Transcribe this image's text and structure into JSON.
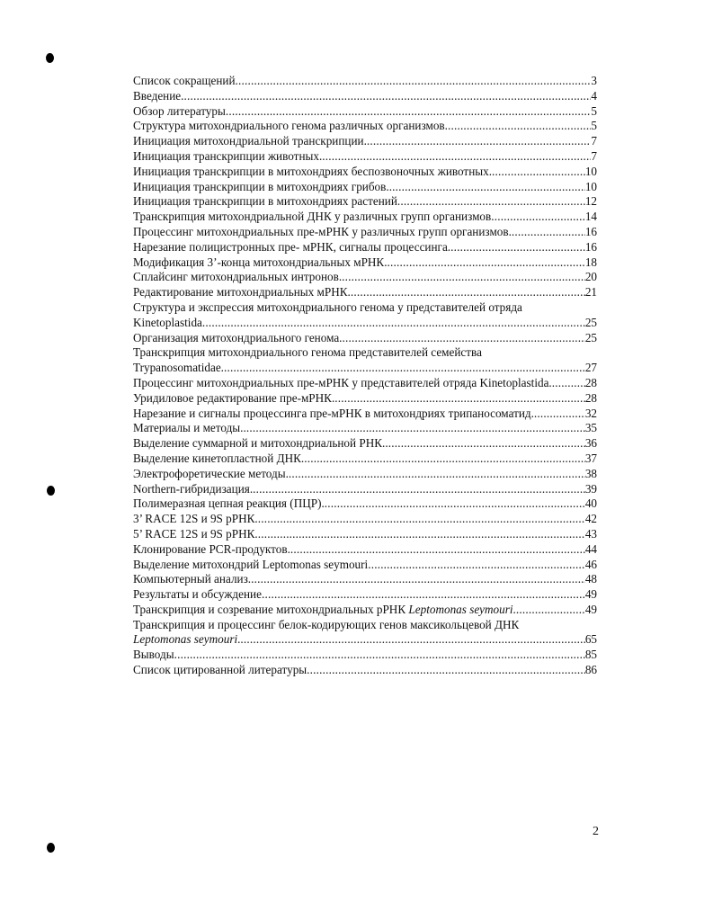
{
  "toc": [
    {
      "title": "Список сокращений",
      "page": "3"
    },
    {
      "title": "Введение. ",
      "page": "4"
    },
    {
      "title": "Обзор литературы",
      "page": "5"
    },
    {
      "title": "Структура митохондриального генома различных организмов. ",
      "page": "5"
    },
    {
      "title": "Инициация митохондриальной транскрипции.",
      "page": "7"
    },
    {
      "title": "Инициация транскрипции животных.",
      "page": "7"
    },
    {
      "title": "Инициация транскрипции в митохондриях беспозвоночных животных. ",
      "page": "10"
    },
    {
      "title": "Инициация транскрипции в митохондриях грибов.",
      "page": "10"
    },
    {
      "title": "Инициация транскрипции в митохондриях растений ",
      "page": "12"
    },
    {
      "title": "Транскрипция митохондриальной ДНК у различных групп организмов ",
      "page": "14"
    },
    {
      "title": "Процессинг митохондриальных пре-мРНК у различных групп организмов.",
      "page": "16"
    },
    {
      "title": "Нарезание полицистронных пре- мРНК, сигналы процессинга. ",
      "page": "16"
    },
    {
      "title": "Модификация 3’-конца митохондриальных мРНК.",
      "page": "18"
    },
    {
      "title": "Сплайсинг митохондриальных интронов.",
      "page": "20"
    },
    {
      "title": "Редактирование митохондриальных мРНК.",
      "page": "21"
    },
    {
      "title": "Структура и экспрессия митохондриального генома у представителей отряда",
      "continuation": "Kinetoplastida",
      "page": "25"
    },
    {
      "title": "Организация митохондриального генома.",
      "page": "25"
    },
    {
      "title": "Транскрипция митохондриального генома представителей семейства",
      "continuation": "Trypanosomatidae. ",
      "page": "27"
    },
    {
      "title": "Процессинг митохондриальных пре-мРНК у представителей отряда Kinetoplastida. ",
      "page": "28"
    },
    {
      "title": "Уридиловое редактирование пре-мРНК. ",
      "page": "28"
    },
    {
      "title": "Нарезание и сигналы процессинга пре-мРНК  в митохондриях трипаносоматид.",
      "page": "32"
    },
    {
      "title": "Материалы и методы. ",
      "page": "35"
    },
    {
      "title": "Выделение суммарной и митохондриальной РНК.",
      "page": "36"
    },
    {
      "title": "Выделение кинетопластной ДНК. ",
      "page": "37"
    },
    {
      "title": "Электрофоретические методы. ",
      "page": "38"
    },
    {
      "title": "Northern-гибридизация. ",
      "page": "39"
    },
    {
      "title": "Полимеразная цепная реакция  (ПЦР). ",
      "page": "40"
    },
    {
      "title": "3’ RACE 12S и 9S рРНК. ",
      "page": "42"
    },
    {
      "title": "5’ RACE 12S и 9S рРНК. ",
      "page": "43"
    },
    {
      "title": "Клонирование PCR-продуктов.",
      "page": "44"
    },
    {
      "title": "Выделение митохондрий Leptomonas seymouri",
      "page": "46"
    },
    {
      "title": "Компьютерный анализ.",
      "page": "48"
    },
    {
      "title": "Результаты и обсуждение",
      "page": "49"
    },
    {
      "title": "Транскрипция и созревание митохондриальных рРНК ",
      "italic": "Leptomonas seymouri",
      "after": ". ",
      "page": "49"
    },
    {
      "title": "Транскрипция и процессинг белок-кодирующих генов максикольцевой ДНК",
      "continuation_italic": "Leptomonas seymouri",
      "continuation": ". ",
      "page": "65"
    },
    {
      "title": "Выводы",
      "page": "85"
    },
    {
      "title": "Список цитированной литературы ",
      "page": "86"
    }
  ],
  "page_number": "2"
}
